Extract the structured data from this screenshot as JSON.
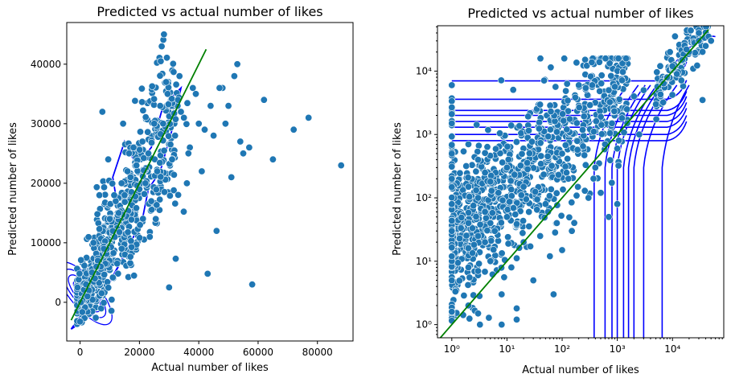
{
  "chart_data": [
    {
      "type": "scatter",
      "title": "Predicted vs actual number of likes",
      "xlabel": "Actual number of likes",
      "ylabel": "Predicted number of likes",
      "x_scale": "linear",
      "y_scale": "linear",
      "xlim": [
        -4500,
        92000
      ],
      "ylim": [
        -6500,
        47000
      ],
      "x_ticks": [
        0,
        20000,
        40000,
        60000,
        80000
      ],
      "y_ticks": [
        0,
        10000,
        20000,
        30000,
        40000
      ],
      "x_tick_labels": [
        "0",
        "20000",
        "40000",
        "60000",
        "80000"
      ],
      "y_tick_labels": [
        "0",
        "10000",
        "20000",
        "30000",
        "40000"
      ],
      "overlays": [
        "kde density contours",
        "y = x reference line"
      ],
      "colors": {
        "points": "#1f77b4",
        "contour": "#0000ff",
        "reference_line": "#008000"
      },
      "reference_line": {
        "x": [
          -3000,
          42500
        ],
        "y": [
          -3000,
          42500
        ]
      },
      "series": [
        {
          "x": [
            88000,
            77000,
            72000,
            65000,
            58000,
            55000,
            52000,
            50000,
            48000,
            45000,
            43000,
            40000,
            38000,
            36000,
            33000,
            30000,
            62000,
            57000,
            54000,
            49000,
            47000,
            44000,
            42000,
            39000,
            37000,
            35000,
            32000,
            29000,
            27000,
            25000,
            23000,
            21000,
            19000,
            17000,
            15000,
            13000,
            11000,
            9000,
            7000,
            5000,
            3000,
            1500,
            800,
            300,
            26000,
            28000,
            31000,
            34000,
            22000,
            24000,
            18000,
            20000,
            16000,
            14000,
            12000,
            10000,
            8000,
            6000,
            4000,
            2000,
            46000,
            51000,
            53000,
            41000,
            29500,
            33500,
            27500,
            36500,
            25500,
            23500,
            12500,
            16500,
            9500,
            11500,
            14500,
            7500,
            6500,
            5500,
            4500,
            2500
          ],
          "y": [
            23000,
            31000,
            29000,
            24000,
            3000,
            25000,
            38000,
            33000,
            36000,
            28000,
            4800,
            30000,
            36000,
            20000,
            34000,
            2500,
            34000,
            26000,
            27000,
            30000,
            36000,
            33000,
            29000,
            35000,
            26000,
            31000,
            28000,
            37000,
            33000,
            30000,
            25000,
            27000,
            23000,
            21000,
            18000,
            15000,
            12000,
            9000,
            6000,
            4000,
            2000,
            800,
            300,
            0,
            22000,
            30000,
            24000,
            32000,
            20000,
            17000,
            26000,
            19000,
            22000,
            20000,
            17000,
            14000,
            9000,
            7000,
            5000,
            3000,
            12000,
            21000,
            40000,
            22000,
            35000,
            38000,
            43000,
            25000,
            14000,
            11000,
            6500,
            25000,
            24000,
            18000,
            30000,
            32000,
            18000,
            6000,
            10000,
            1000
          ]
        }
      ]
    },
    {
      "type": "scatter",
      "title": "Predicted vs actual number of likes",
      "xlabel": "Actual number of likes",
      "ylabel": "Predicted number of likes",
      "x_scale": "log",
      "y_scale": "log",
      "xlim": [
        0.55,
        85000
      ],
      "ylim": [
        0.62,
        52000
      ],
      "x_ticks": [
        1,
        10,
        100,
        1000,
        10000
      ],
      "y_ticks": [
        1,
        10,
        100,
        1000,
        10000
      ],
      "x_tick_labels": [
        "10⁰",
        "10¹",
        "10²",
        "10³",
        "10⁴"
      ],
      "y_tick_labels": [
        "10⁰",
        "10¹",
        "10²",
        "10³",
        "10⁴"
      ],
      "overlays": [
        "kde density contours",
        "y = x reference line"
      ],
      "colors": {
        "points": "#1f77b4",
        "contour": "#0000ff",
        "reference_line": "#008000"
      },
      "reference_line": {
        "x": [
          0.55,
          45000
        ],
        "y": [
          0.55,
          45000
        ]
      },
      "series": [
        {
          "x": [
            1,
            1,
            1,
            1,
            1,
            1,
            1,
            1,
            1,
            2,
            2,
            2,
            2,
            2,
            3,
            3,
            3,
            3,
            3,
            4,
            4,
            4,
            5,
            5,
            5,
            6,
            7,
            8,
            10,
            10,
            12,
            15,
            20,
            20,
            25,
            30,
            40,
            50,
            60,
            80,
            100,
            100,
            150,
            200,
            300,
            400,
            500,
            600,
            800,
            1000,
            1000,
            1500,
            2000,
            3000,
            5000,
            8000,
            10000,
            15000,
            20000,
            25000,
            30000,
            40000,
            45000,
            12000,
            18000,
            35000,
            2500,
            700,
            350,
            120,
            70,
            15,
            8,
            3,
            30000,
            50000,
            9000,
            6000,
            700,
            130
          ],
          "y": [
            1.6,
            5,
            12,
            30,
            80,
            200,
            500,
            1500,
            6000,
            2,
            8,
            40,
            150,
            700,
            1.5,
            6,
            25,
            100,
            400,
            20,
            60,
            250,
            10,
            40,
            180,
            30,
            120,
            3,
            50,
            300,
            8,
            1.8,
            20,
            150,
            60,
            5,
            25,
            80,
            12,
            40,
            15,
            500,
            30,
            6000,
            100,
            300,
            120,
            700,
            1500,
            80,
            600,
            2500,
            4000,
            5000,
            3000,
            8000,
            12000,
            15000,
            20000,
            28000,
            30000,
            25000,
            35000,
            9000,
            22000,
            3500,
            1000,
            5000,
            6000,
            250,
            3,
            1.2,
            1,
            7,
            40000,
            30000,
            20000,
            12000,
            50,
            200
          ]
        }
      ]
    }
  ]
}
